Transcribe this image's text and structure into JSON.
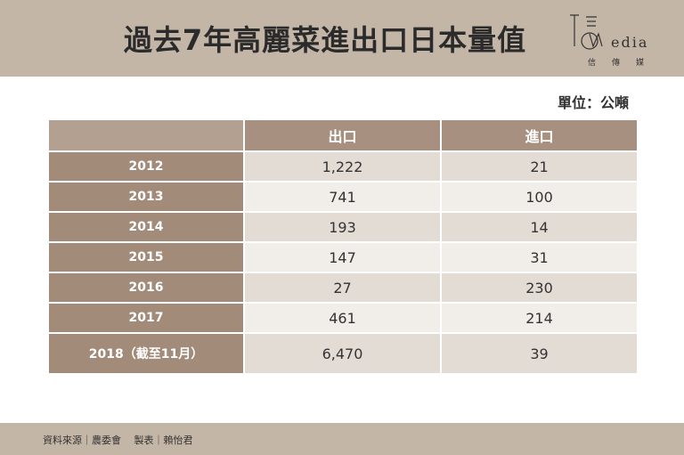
{
  "header": {
    "title": "過去7年高麗菜進出口日本量值",
    "logo_word": "edia",
    "logo_sub": "信傳媒"
  },
  "unit_label": "單位：公噸",
  "table": {
    "columns": [
      "出口",
      "進口"
    ],
    "rows": [
      {
        "year": "2012",
        "export": "1,222",
        "import": "21"
      },
      {
        "year": "2013",
        "export": "741",
        "import": "100"
      },
      {
        "year": "2014",
        "export": "193",
        "import": "14"
      },
      {
        "year": "2015",
        "export": "147",
        "import": "31"
      },
      {
        "year": "2016",
        "export": "27",
        "import": "230"
      },
      {
        "year": "2017",
        "export": "461",
        "import": "214"
      },
      {
        "year": "2018（截至11月）",
        "export": "6,470",
        "import": "39"
      }
    ]
  },
  "footer": {
    "source": "資料來源｜農委會　 製表｜賴怡君"
  },
  "colors": {
    "header_bg": "#c4b6a7",
    "row_header_bg": "#a38b79",
    "cell_odd": "#e3dcd5",
    "cell_even": "#f1ede8"
  }
}
